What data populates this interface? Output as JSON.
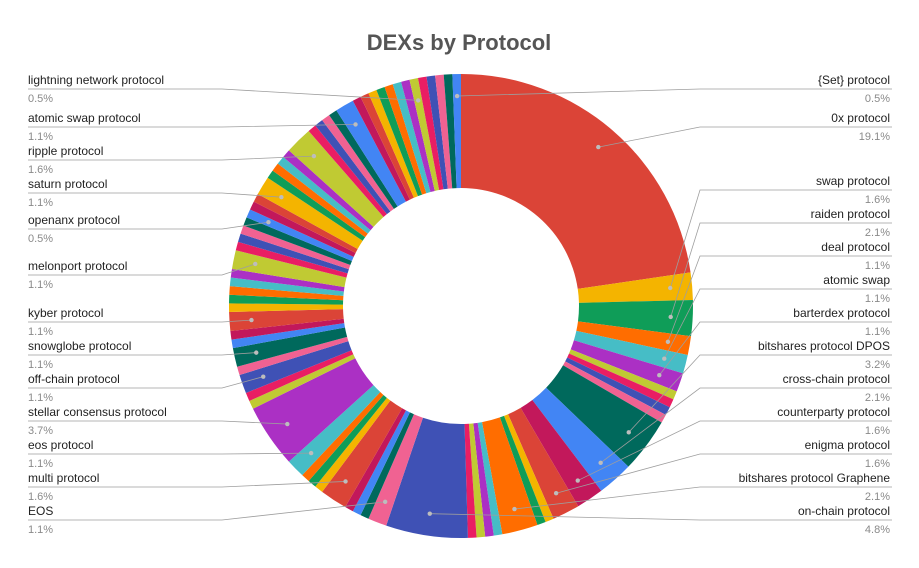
{
  "chart_data": {
    "type": "pie",
    "donut": true,
    "title": "DEXs by Protocol",
    "legend": "none",
    "labeled_slices": [
      {
        "name": "{Set} protocol",
        "label": "0.5%",
        "value": 0.5,
        "side": "right"
      },
      {
        "name": "0x protocol",
        "label": "19.1%",
        "value": 19.1,
        "side": "right"
      },
      {
        "name": "swap protocol",
        "label": "1.6%",
        "value": 1.6,
        "side": "right"
      },
      {
        "name": "raiden protocol",
        "label": "2.1%",
        "value": 2.1,
        "side": "right"
      },
      {
        "name": "deal protocol",
        "label": "1.1%",
        "value": 1.1,
        "side": "right"
      },
      {
        "name": "atomic swap",
        "label": "1.1%",
        "value": 1.1,
        "side": "right"
      },
      {
        "name": "barterdex protocol",
        "label": "1.1%",
        "value": 1.1,
        "side": "right"
      },
      {
        "name": "bitshares protocol DPOS",
        "label": "3.2%",
        "value": 3.2,
        "side": "right"
      },
      {
        "name": "cross-chain protocol",
        "label": "2.1%",
        "value": 2.1,
        "side": "right"
      },
      {
        "name": "counterparty protocol",
        "label": "1.6%",
        "value": 1.6,
        "side": "right"
      },
      {
        "name": "enigma protocol",
        "label": "1.6%",
        "value": 1.6,
        "side": "right"
      },
      {
        "name": "bitshares protocol Graphene",
        "label": "2.1%",
        "value": 2.1,
        "side": "right"
      },
      {
        "name": "on-chain protocol",
        "label": "4.8%",
        "value": 4.8,
        "side": "right"
      },
      {
        "name": "EOS",
        "label": "1.1%",
        "value": 1.1,
        "side": "left"
      },
      {
        "name": "multi protocol",
        "label": "1.6%",
        "value": 1.6,
        "side": "left"
      },
      {
        "name": "eos protocol",
        "label": "1.1%",
        "value": 1.1,
        "side": "left"
      },
      {
        "name": "stellar consensus protocol",
        "label": "3.7%",
        "value": 3.7,
        "side": "left"
      },
      {
        "name": "off-chain protocol",
        "label": "1.1%",
        "value": 1.1,
        "side": "left"
      },
      {
        "name": "snowglobe protocol",
        "label": "1.1%",
        "value": 1.1,
        "side": "left"
      },
      {
        "name": "kyber protocol",
        "label": "1.1%",
        "value": 1.1,
        "side": "left"
      },
      {
        "name": "melonport protocol",
        "label": "1.1%",
        "value": 1.1,
        "side": "left"
      },
      {
        "name": "openanx protocol",
        "label": "0.5%",
        "value": 0.5,
        "side": "left"
      },
      {
        "name": "saturn protocol",
        "label": "1.1%",
        "value": 1.1,
        "side": "left"
      },
      {
        "name": "ripple protocol",
        "label": "1.6%",
        "value": 1.6,
        "side": "left"
      },
      {
        "name": "atomic swap protocol",
        "label": "1.1%",
        "value": 1.1,
        "side": "left"
      },
      {
        "name": "lightning network protocol",
        "label": "0.5%",
        "value": 0.5,
        "side": "left"
      }
    ]
  },
  "palette": [
    "#db4437",
    "#f4b400",
    "#0f9d58",
    "#ff6d00",
    "#46bdc6",
    "#ab30c4",
    "#c0ca33",
    "#e91e63",
    "#3f51b5",
    "#f06292",
    "#00695c",
    "#4285f4",
    "#c2185b"
  ]
}
